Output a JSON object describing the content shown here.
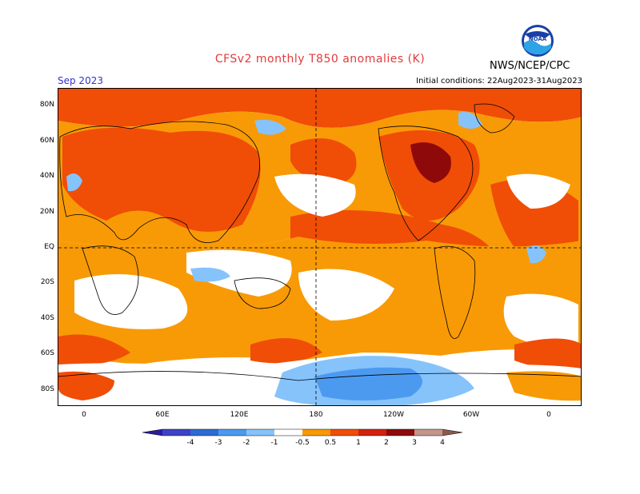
{
  "header": {
    "title": "CFSv2 monthly T850 anomalies (K)",
    "agency": "NWS/NCEP/CPC",
    "period": "Sep 2023",
    "initial_conditions": "Initial conditions: 22Aug2023-31Aug2023",
    "logo_text": "NOAA"
  },
  "map": {
    "projection": "equirectangular",
    "lat_labels": [
      "80N",
      "60N",
      "40N",
      "20N",
      "EQ",
      "20S",
      "40S",
      "60S",
      "80S"
    ],
    "lon_labels": [
      "0",
      "60E",
      "120E",
      "180",
      "120W",
      "60W",
      "0"
    ],
    "grid": "dashed equator and 180 meridian"
  },
  "colorbar": {
    "levels": [
      "-4",
      "-3",
      "-2",
      "-1",
      "-0.5",
      "0.5",
      "1",
      "2",
      "3",
      "4"
    ],
    "colors": [
      "#2a1c9c",
      "#3d43c6",
      "#2d6ad4",
      "#4c9af0",
      "#86c3fb",
      "#ffffff",
      "#f89a06",
      "#f04d07",
      "#d2220e",
      "#8e0a0a",
      "#c2968b",
      "#8a5a4c"
    ],
    "units": "K"
  }
}
